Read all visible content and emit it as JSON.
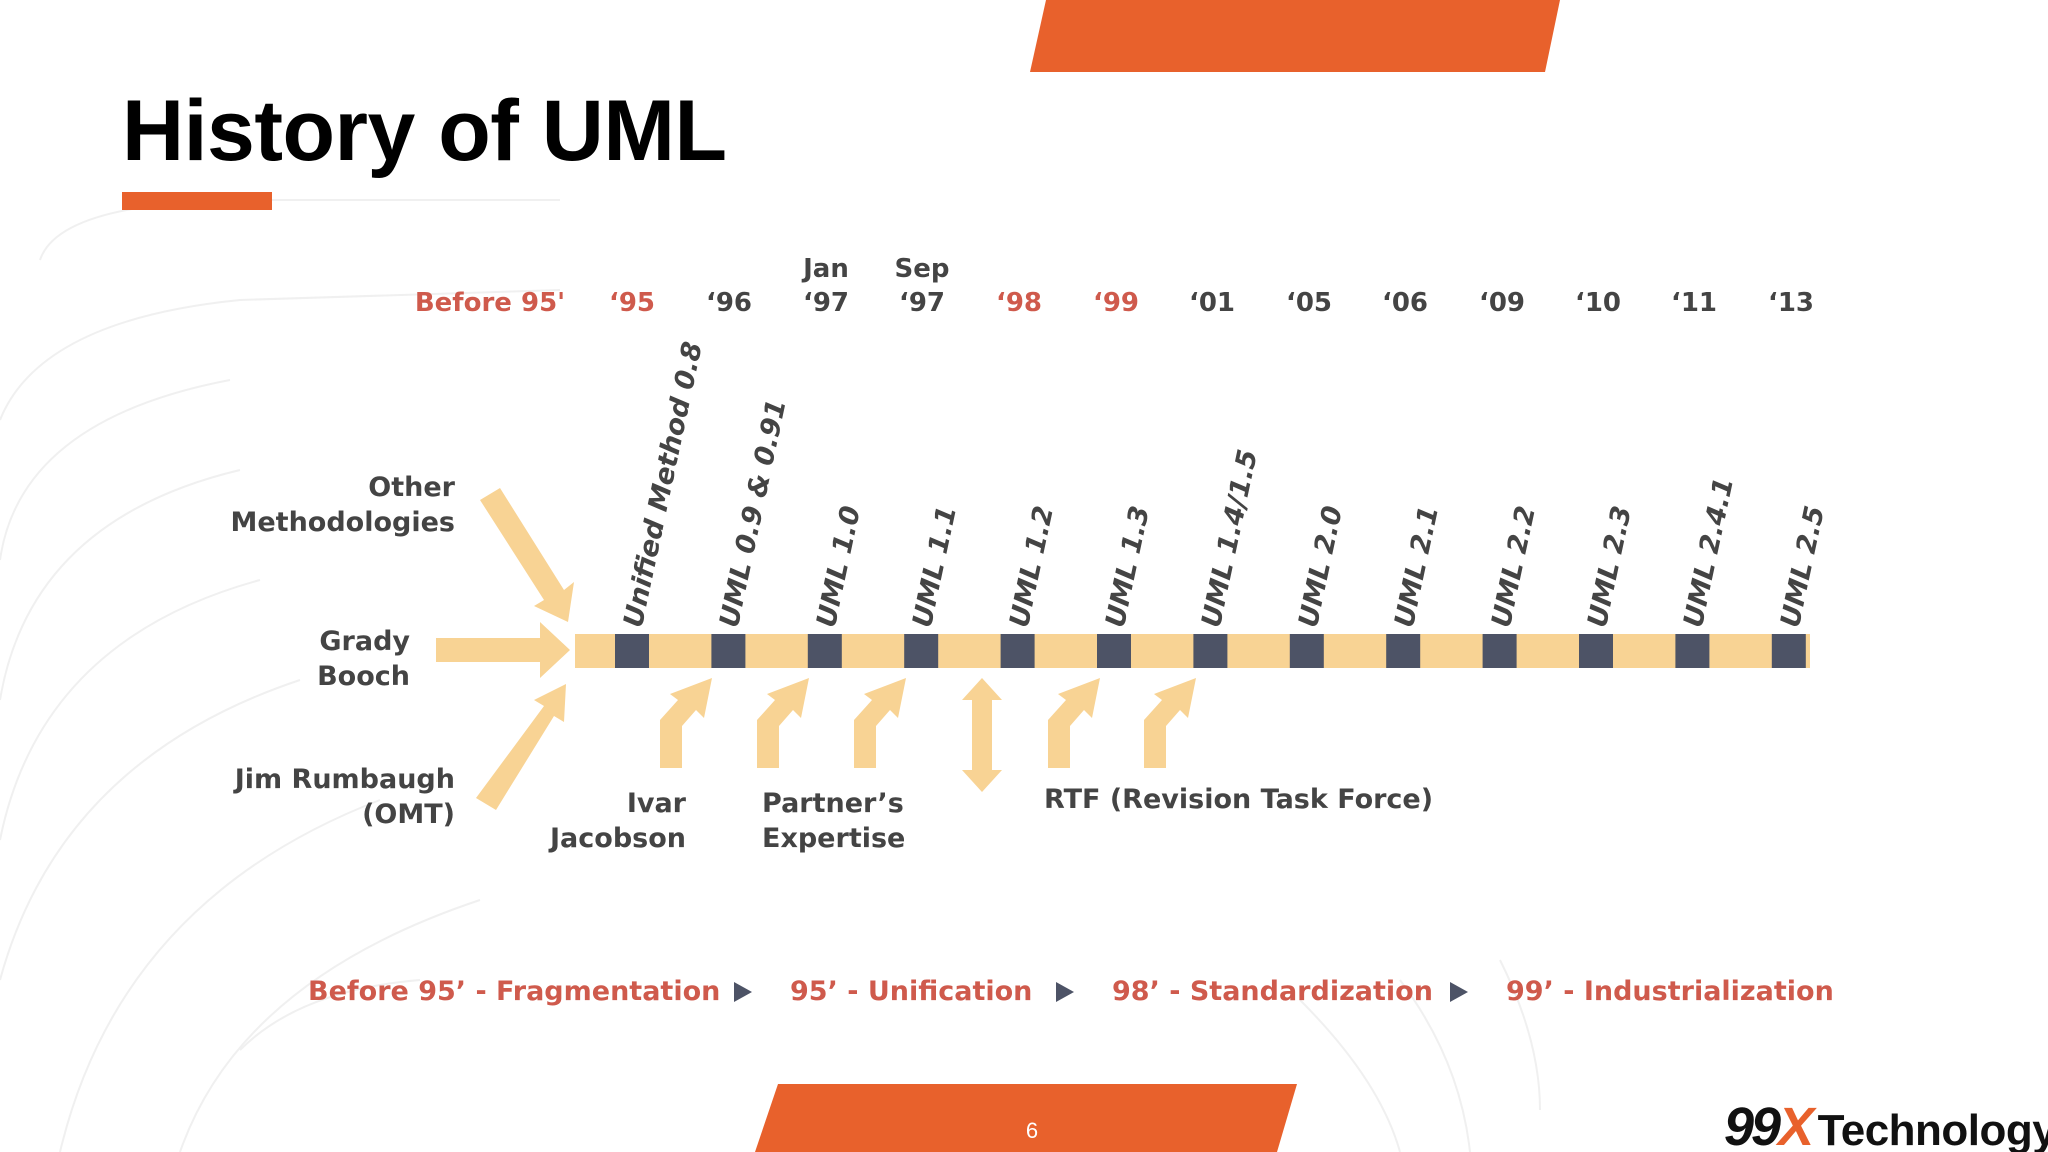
{
  "slide": {
    "title": "History of UML",
    "page_number": "6"
  },
  "timeline": {
    "years": [
      {
        "line1": "",
        "line2": "Before 95'",
        "highlight": true
      },
      {
        "line1": "",
        "line2": "‘95",
        "highlight": true
      },
      {
        "line1": "",
        "line2": "‘96",
        "highlight": false
      },
      {
        "line1": "Jan",
        "line2": "‘97",
        "highlight": false
      },
      {
        "line1": "Sep",
        "line2": "‘97",
        "highlight": false
      },
      {
        "line1": "",
        "line2": "‘98",
        "highlight": true
      },
      {
        "line1": "",
        "line2": "‘99",
        "highlight": true
      },
      {
        "line1": "",
        "line2": "‘01",
        "highlight": false
      },
      {
        "line1": "",
        "line2": "‘05",
        "highlight": false
      },
      {
        "line1": "",
        "line2": "‘06",
        "highlight": false
      },
      {
        "line1": "",
        "line2": "‘09",
        "highlight": false
      },
      {
        "line1": "",
        "line2": "‘10",
        "highlight": false
      },
      {
        "line1": "",
        "line2": "‘11",
        "highlight": false
      },
      {
        "line1": "",
        "line2": "‘13",
        "highlight": false
      }
    ],
    "versions": [
      "Unified Method 0.8",
      "UML 0.9 & 0.91",
      "UML 1.0",
      "UML 1.1",
      "UML 1.2",
      "UML 1.3",
      "UML 1.4/1.5",
      "UML 2.0",
      "UML 2.1",
      "UML 2.2",
      "UML 2.3",
      "UML 2.4.1",
      "UML 2.5"
    ]
  },
  "inputs": {
    "other_line1": "Other",
    "other_line2": "Methodologies",
    "grady_line1": "Grady",
    "grady_line2": "Booch",
    "jim_line1": "Jim Rumbaugh",
    "jim_line2": "(OMT)",
    "ivar_line1": "Ivar",
    "ivar_line2": "Jacobson",
    "partner_line1": "Partner’s",
    "partner_line2": "Expertise",
    "rtf": "RTF (Revision Task Force)"
  },
  "phases": [
    "Before 95’ - Fragmentation",
    "95’ - Unification",
    "98’ - Standardization",
    "99’ - Industrialization"
  ],
  "brand": {
    "logo_digits": "99",
    "logo_x": "X",
    "logo_word": "Technology"
  },
  "colors": {
    "accent_orange": "#e8612c",
    "timeline_yellow": "#f8d394",
    "timeline_marker": "#4d5366",
    "highlight_text": "#cf5a4c",
    "body_text": "#444444"
  }
}
